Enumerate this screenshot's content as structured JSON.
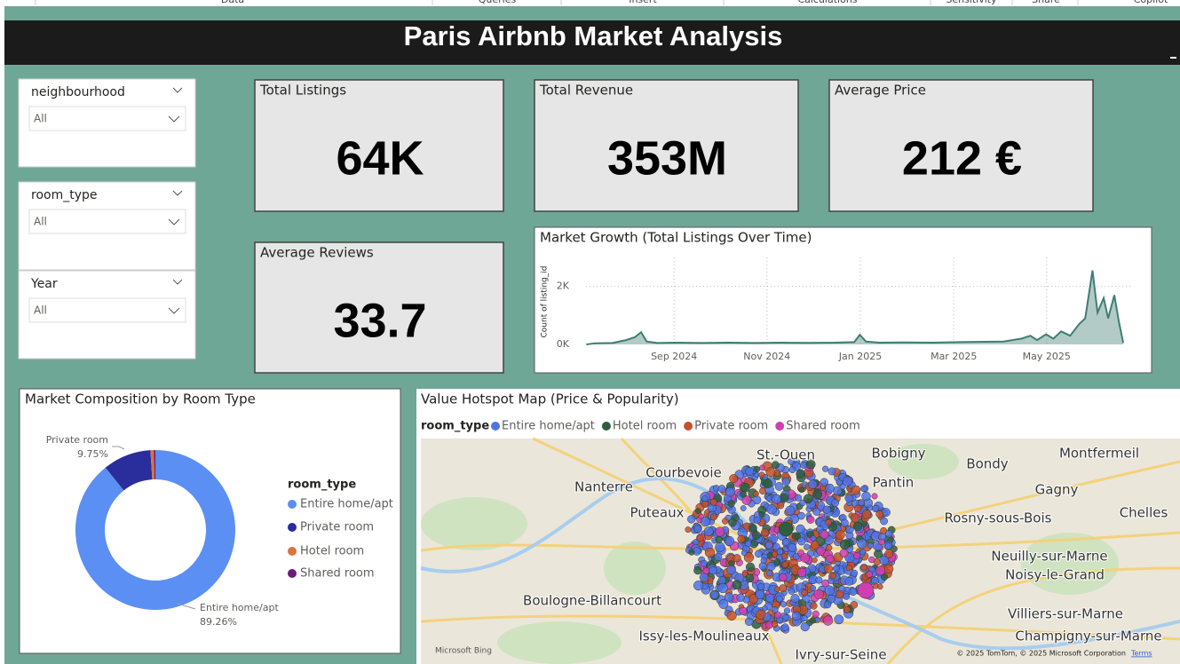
{
  "menu": [
    "Data",
    "Queries",
    "Insert",
    "Calculations",
    "Sensitivity",
    "Share",
    "Copilot"
  ],
  "header": {
    "title": "Paris Airbnb Market Analysis"
  },
  "slicers": [
    {
      "label": "neighbourhood",
      "value": "All"
    },
    {
      "label": "room_type",
      "value": "All"
    },
    {
      "label": "Year",
      "value": "All"
    }
  ],
  "kpis": [
    {
      "title": "Total Listings",
      "value": "64K"
    },
    {
      "title": "Total Revenue",
      "value": "353M"
    },
    {
      "title": "Average Price",
      "value": "212 €"
    },
    {
      "title": "Average Reviews",
      "value": "33.7"
    }
  ],
  "chart_data": [
    {
      "type": "line",
      "title": "Market Growth (Total Listings Over Time)",
      "y_label": "Count of listing_id",
      "color": "#3f7d74",
      "grid": true,
      "x": [
        2024.51,
        2024.526,
        2024.557,
        2024.581,
        2024.597,
        2024.608,
        2024.618,
        2024.637,
        2024.669,
        2024.716,
        2024.764,
        2024.811,
        2024.859,
        2024.907,
        2024.954,
        2024.989,
        2024.999,
        2025.01,
        2025.034,
        2025.081,
        2025.129,
        2025.177,
        2025.224,
        2025.256,
        2025.288,
        2025.304,
        2025.316,
        2025.332,
        2025.345,
        2025.359,
        2025.375,
        2025.391,
        2025.402,
        2025.415,
        2025.424,
        2025.435,
        2025.443,
        2025.454,
        2025.462,
        2025.47
      ],
      "values": [
        0,
        40,
        50,
        150,
        250,
        420,
        100,
        50,
        60,
        50,
        60,
        50,
        60,
        55,
        60,
        80,
        330,
        100,
        60,
        70,
        60,
        80,
        90,
        100,
        200,
        300,
        150,
        350,
        200,
        450,
        300,
        700,
        900,
        2550,
        1100,
        1600,
        900,
        1700,
        800,
        50
      ],
      "xlim": [
        2024.5,
        2025.5
      ],
      "ylim": [
        0,
        3000
      ],
      "xticks": [
        {
          "value": 2024.667,
          "label": "Sep 2024"
        },
        {
          "value": 2024.833,
          "label": "Nov 2024"
        },
        {
          "value": 2025.0,
          "label": "Jan 2025"
        },
        {
          "value": 2025.167,
          "label": "Mar 2025"
        },
        {
          "value": 2025.333,
          "label": "May 2025"
        }
      ],
      "yticks": [
        {
          "value": 0,
          "label": "0K"
        },
        {
          "value": 2000,
          "label": "2K"
        }
      ]
    },
    {
      "type": "pie",
      "title": "Market Composition by Room Type",
      "legend_title": "room_type",
      "categories": [
        "Entire home/apt",
        "Private room",
        "Hotel room",
        "Shared room"
      ],
      "values": [
        89.26,
        9.75,
        0.7,
        0.29
      ],
      "value_labels": [
        "89.26%",
        "9.75%",
        null,
        null
      ],
      "colors": [
        "#5b8ff3",
        "#2a2d9c",
        "#d9743f",
        "#6b1c78"
      ]
    }
  ],
  "map": {
    "title": "Value Hotspot Map (Price & Popularity)",
    "legend_title": "room_type",
    "legend": [
      {
        "name": "Entire home/apt",
        "color": "#4f73e6"
      },
      {
        "name": "Hotel room",
        "color": "#2d5e40"
      },
      {
        "name": "Private room",
        "color": "#c4512a"
      },
      {
        "name": "Shared room",
        "color": "#d23eb2"
      }
    ],
    "places": [
      "St.-Ouen",
      "Bobigny",
      "Bondy",
      "Montfermeil",
      "Courbevoie",
      "Nanterre",
      "Pantin",
      "Gagny",
      "Puteaux",
      "Rosny-sous-Bois",
      "Chelles",
      "Neuilly-sur-Marne",
      "Noisy-le-Grand",
      "Boulogne-Billancourt",
      "Villiers-sur-Marne",
      "Issy-les-Moulineaux",
      "Champigny-sur-Marne",
      "Ivry-sur-Seine"
    ],
    "brand": "Microsoft Bing",
    "attribution": "© 2025 TomTom, © 2025 Microsoft Corporation",
    "terms": "Terms"
  }
}
